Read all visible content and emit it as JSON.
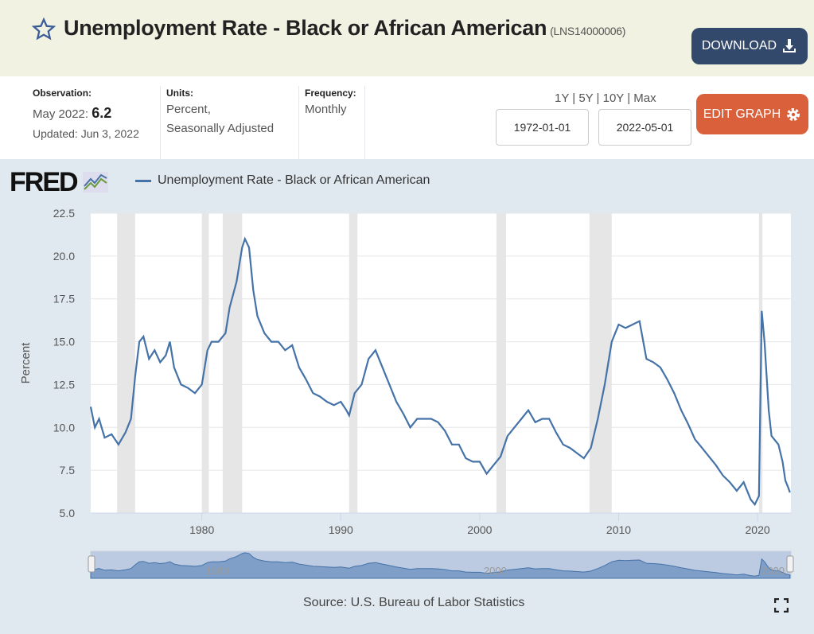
{
  "header": {
    "title": "Unemployment Rate - Black or African American",
    "series_id": "(LNS14000006)",
    "download_label": "DOWNLOAD"
  },
  "meta": {
    "observation_label": "Observation:",
    "observation_date": "May 2022:",
    "observation_value": "6.2",
    "updated": "Updated: Jun 3, 2022",
    "units_label": "Units:",
    "units_line1": "Percent,",
    "units_line2": "Seasonally Adjusted",
    "frequency_label": "Frequency:",
    "frequency": "Monthly"
  },
  "range": {
    "options": [
      "1Y",
      "5Y",
      "10Y",
      "Max"
    ],
    "start": "1972-01-01",
    "end": "2022-05-01"
  },
  "edit_label": "EDIT GRAPH",
  "logo": "FRED",
  "source": "Source: U.S. Bureau of Labor Statistics",
  "colors": {
    "line": "#4572a7",
    "recession": "#e6e6e6",
    "download": "#33496b",
    "edit": "#d9603b"
  },
  "chart_data": {
    "type": "line",
    "title": "",
    "legend": "Unemployment Rate - Black or African American",
    "legend_position": "top-left",
    "ylabel": "Percent",
    "xlabel": "",
    "ylim": [
      5.0,
      22.5
    ],
    "xlim": [
      1972.0,
      2022.4
    ],
    "yticks": [
      "5.0",
      "7.5",
      "10.0",
      "12.5",
      "15.0",
      "17.5",
      "20.0",
      "22.5"
    ],
    "xticks": [
      "1980",
      "1990",
      "2000",
      "2010",
      "2020"
    ],
    "navigator_labels": [
      "1980",
      "2000",
      "2020"
    ],
    "grid": true,
    "recessions": [
      [
        1973.9,
        1975.2
      ],
      [
        1980.0,
        1980.5
      ],
      [
        1981.5,
        1982.9
      ],
      [
        1990.6,
        1991.2
      ],
      [
        2001.2,
        2001.9
      ],
      [
        2007.9,
        2009.5
      ],
      [
        2020.1,
        2020.35
      ]
    ],
    "series": [
      {
        "name": "Unemployment Rate - Black or African American",
        "points": [
          [
            1972.0,
            11.2
          ],
          [
            1972.3,
            10.0
          ],
          [
            1972.6,
            10.5
          ],
          [
            1973.0,
            9.4
          ],
          [
            1973.5,
            9.6
          ],
          [
            1974.0,
            9.0
          ],
          [
            1974.5,
            9.7
          ],
          [
            1974.9,
            10.5
          ],
          [
            1975.2,
            13.0
          ],
          [
            1975.5,
            15.0
          ],
          [
            1975.8,
            15.3
          ],
          [
            1976.2,
            14.0
          ],
          [
            1976.6,
            14.5
          ],
          [
            1977.0,
            13.8
          ],
          [
            1977.4,
            14.2
          ],
          [
            1977.7,
            15.0
          ],
          [
            1978.0,
            13.5
          ],
          [
            1978.5,
            12.5
          ],
          [
            1979.0,
            12.3
          ],
          [
            1979.5,
            12.0
          ],
          [
            1980.0,
            12.5
          ],
          [
            1980.4,
            14.5
          ],
          [
            1980.7,
            15.0
          ],
          [
            1981.2,
            15.0
          ],
          [
            1981.7,
            15.5
          ],
          [
            1982.0,
            17.0
          ],
          [
            1982.5,
            18.5
          ],
          [
            1982.9,
            20.5
          ],
          [
            1983.1,
            21.0
          ],
          [
            1983.4,
            20.5
          ],
          [
            1983.7,
            18.0
          ],
          [
            1984.0,
            16.5
          ],
          [
            1984.5,
            15.5
          ],
          [
            1985.0,
            15.0
          ],
          [
            1985.5,
            15.0
          ],
          [
            1986.0,
            14.5
          ],
          [
            1986.5,
            14.8
          ],
          [
            1987.0,
            13.5
          ],
          [
            1987.5,
            12.8
          ],
          [
            1988.0,
            12.0
          ],
          [
            1988.5,
            11.8
          ],
          [
            1989.0,
            11.5
          ],
          [
            1989.5,
            11.3
          ],
          [
            1990.0,
            11.5
          ],
          [
            1990.4,
            11.0
          ],
          [
            1990.6,
            10.7
          ],
          [
            1991.0,
            12.0
          ],
          [
            1991.5,
            12.5
          ],
          [
            1992.0,
            14.0
          ],
          [
            1992.5,
            14.5
          ],
          [
            1993.0,
            13.5
          ],
          [
            1993.5,
            12.5
          ],
          [
            1994.0,
            11.5
          ],
          [
            1994.5,
            10.8
          ],
          [
            1995.0,
            10.0
          ],
          [
            1995.5,
            10.5
          ],
          [
            1996.0,
            10.5
          ],
          [
            1996.5,
            10.5
          ],
          [
            1997.0,
            10.3
          ],
          [
            1997.5,
            9.8
          ],
          [
            1998.0,
            9.0
          ],
          [
            1998.5,
            9.0
          ],
          [
            1999.0,
            8.2
          ],
          [
            1999.5,
            8.0
          ],
          [
            2000.0,
            8.0
          ],
          [
            2000.5,
            7.3
          ],
          [
            2001.0,
            7.8
          ],
          [
            2001.5,
            8.3
          ],
          [
            2002.0,
            9.5
          ],
          [
            2002.5,
            10.0
          ],
          [
            2003.0,
            10.5
          ],
          [
            2003.5,
            11.0
          ],
          [
            2004.0,
            10.3
          ],
          [
            2004.5,
            10.5
          ],
          [
            2005.0,
            10.5
          ],
          [
            2005.5,
            9.7
          ],
          [
            2006.0,
            9.0
          ],
          [
            2006.5,
            8.8
          ],
          [
            2007.0,
            8.5
          ],
          [
            2007.5,
            8.2
          ],
          [
            2008.0,
            8.8
          ],
          [
            2008.5,
            10.5
          ],
          [
            2009.0,
            12.5
          ],
          [
            2009.5,
            15.0
          ],
          [
            2010.0,
            16.0
          ],
          [
            2010.5,
            15.8
          ],
          [
            2011.0,
            16.0
          ],
          [
            2011.5,
            16.2
          ],
          [
            2012.0,
            14.0
          ],
          [
            2012.5,
            13.8
          ],
          [
            2013.0,
            13.5
          ],
          [
            2013.5,
            12.8
          ],
          [
            2014.0,
            12.0
          ],
          [
            2014.5,
            11.0
          ],
          [
            2015.0,
            10.2
          ],
          [
            2015.5,
            9.3
          ],
          [
            2016.0,
            8.8
          ],
          [
            2016.5,
            8.3
          ],
          [
            2017.0,
            7.8
          ],
          [
            2017.5,
            7.2
          ],
          [
            2018.0,
            6.8
          ],
          [
            2018.5,
            6.3
          ],
          [
            2019.0,
            6.8
          ],
          [
            2019.5,
            5.8
          ],
          [
            2019.8,
            5.5
          ],
          [
            2020.1,
            6.0
          ],
          [
            2020.3,
            16.8
          ],
          [
            2020.5,
            15.0
          ],
          [
            2020.8,
            11.0
          ],
          [
            2021.0,
            9.5
          ],
          [
            2021.5,
            9.0
          ],
          [
            2021.8,
            8.0
          ],
          [
            2022.0,
            6.9
          ],
          [
            2022.2,
            6.5
          ],
          [
            2022.33,
            6.2
          ]
        ]
      }
    ]
  }
}
